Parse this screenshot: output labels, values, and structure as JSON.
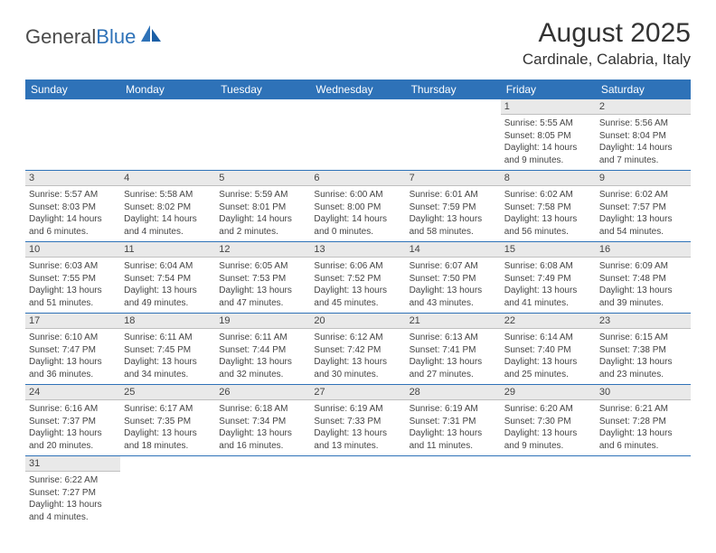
{
  "logo": {
    "text_general": "General",
    "text_blue": "Blue"
  },
  "title": "August 2025",
  "location": "Cardinale, Calabria, Italy",
  "colors": {
    "header_bg": "#2e72b8",
    "header_text": "#ffffff",
    "daynum_bg": "#e9e9e9",
    "row_border": "#2e72b8",
    "text": "#444444"
  },
  "days_of_week": [
    "Sunday",
    "Monday",
    "Tuesday",
    "Wednesday",
    "Thursday",
    "Friday",
    "Saturday"
  ],
  "weeks": [
    [
      null,
      null,
      null,
      null,
      null,
      {
        "n": "1",
        "sr": "5:55 AM",
        "ss": "8:05 PM",
        "dl": "14 hours and 9 minutes."
      },
      {
        "n": "2",
        "sr": "5:56 AM",
        "ss": "8:04 PM",
        "dl": "14 hours and 7 minutes."
      }
    ],
    [
      {
        "n": "3",
        "sr": "5:57 AM",
        "ss": "8:03 PM",
        "dl": "14 hours and 6 minutes."
      },
      {
        "n": "4",
        "sr": "5:58 AM",
        "ss": "8:02 PM",
        "dl": "14 hours and 4 minutes."
      },
      {
        "n": "5",
        "sr": "5:59 AM",
        "ss": "8:01 PM",
        "dl": "14 hours and 2 minutes."
      },
      {
        "n": "6",
        "sr": "6:00 AM",
        "ss": "8:00 PM",
        "dl": "14 hours and 0 minutes."
      },
      {
        "n": "7",
        "sr": "6:01 AM",
        "ss": "7:59 PM",
        "dl": "13 hours and 58 minutes."
      },
      {
        "n": "8",
        "sr": "6:02 AM",
        "ss": "7:58 PM",
        "dl": "13 hours and 56 minutes."
      },
      {
        "n": "9",
        "sr": "6:02 AM",
        "ss": "7:57 PM",
        "dl": "13 hours and 54 minutes."
      }
    ],
    [
      {
        "n": "10",
        "sr": "6:03 AM",
        "ss": "7:55 PM",
        "dl": "13 hours and 51 minutes."
      },
      {
        "n": "11",
        "sr": "6:04 AM",
        "ss": "7:54 PM",
        "dl": "13 hours and 49 minutes."
      },
      {
        "n": "12",
        "sr": "6:05 AM",
        "ss": "7:53 PM",
        "dl": "13 hours and 47 minutes."
      },
      {
        "n": "13",
        "sr": "6:06 AM",
        "ss": "7:52 PM",
        "dl": "13 hours and 45 minutes."
      },
      {
        "n": "14",
        "sr": "6:07 AM",
        "ss": "7:50 PM",
        "dl": "13 hours and 43 minutes."
      },
      {
        "n": "15",
        "sr": "6:08 AM",
        "ss": "7:49 PM",
        "dl": "13 hours and 41 minutes."
      },
      {
        "n": "16",
        "sr": "6:09 AM",
        "ss": "7:48 PM",
        "dl": "13 hours and 39 minutes."
      }
    ],
    [
      {
        "n": "17",
        "sr": "6:10 AM",
        "ss": "7:47 PM",
        "dl": "13 hours and 36 minutes."
      },
      {
        "n": "18",
        "sr": "6:11 AM",
        "ss": "7:45 PM",
        "dl": "13 hours and 34 minutes."
      },
      {
        "n": "19",
        "sr": "6:11 AM",
        "ss": "7:44 PM",
        "dl": "13 hours and 32 minutes."
      },
      {
        "n": "20",
        "sr": "6:12 AM",
        "ss": "7:42 PM",
        "dl": "13 hours and 30 minutes."
      },
      {
        "n": "21",
        "sr": "6:13 AM",
        "ss": "7:41 PM",
        "dl": "13 hours and 27 minutes."
      },
      {
        "n": "22",
        "sr": "6:14 AM",
        "ss": "7:40 PM",
        "dl": "13 hours and 25 minutes."
      },
      {
        "n": "23",
        "sr": "6:15 AM",
        "ss": "7:38 PM",
        "dl": "13 hours and 23 minutes."
      }
    ],
    [
      {
        "n": "24",
        "sr": "6:16 AM",
        "ss": "7:37 PM",
        "dl": "13 hours and 20 minutes."
      },
      {
        "n": "25",
        "sr": "6:17 AM",
        "ss": "7:35 PM",
        "dl": "13 hours and 18 minutes."
      },
      {
        "n": "26",
        "sr": "6:18 AM",
        "ss": "7:34 PM",
        "dl": "13 hours and 16 minutes."
      },
      {
        "n": "27",
        "sr": "6:19 AM",
        "ss": "7:33 PM",
        "dl": "13 hours and 13 minutes."
      },
      {
        "n": "28",
        "sr": "6:19 AM",
        "ss": "7:31 PM",
        "dl": "13 hours and 11 minutes."
      },
      {
        "n": "29",
        "sr": "6:20 AM",
        "ss": "7:30 PM",
        "dl": "13 hours and 9 minutes."
      },
      {
        "n": "30",
        "sr": "6:21 AM",
        "ss": "7:28 PM",
        "dl": "13 hours and 6 minutes."
      }
    ],
    [
      {
        "n": "31",
        "sr": "6:22 AM",
        "ss": "7:27 PM",
        "dl": "13 hours and 4 minutes."
      },
      null,
      null,
      null,
      null,
      null,
      null
    ]
  ],
  "labels": {
    "sunrise": "Sunrise: ",
    "sunset": "Sunset: ",
    "daylight": "Daylight: "
  }
}
